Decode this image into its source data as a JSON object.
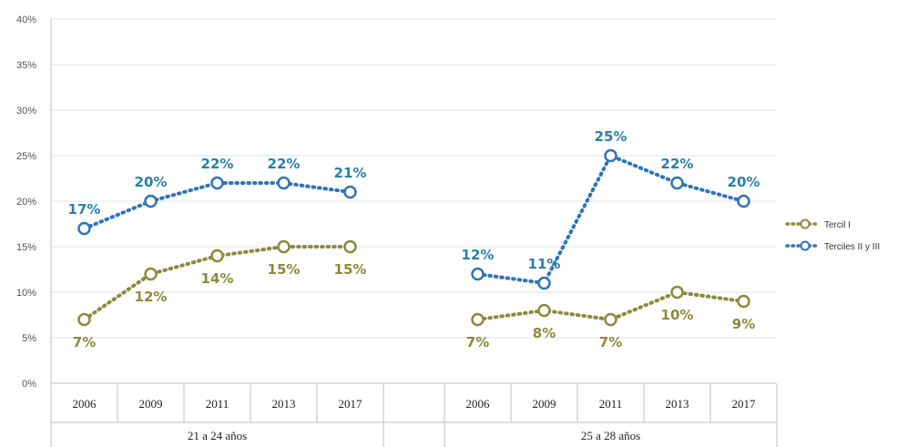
{
  "chart_data": {
    "type": "line",
    "title": "",
    "xlabel": "",
    "ylabel": "",
    "ylim": [
      0,
      40
    ],
    "yticks": [
      "0%",
      "5%",
      "10%",
      "15%",
      "20%",
      "25%",
      "30%",
      "35%",
      "40%"
    ],
    "grid": true,
    "legend_position": "right",
    "groups": [
      {
        "label": "21 a 24 años",
        "categories": [
          "2006",
          "2009",
          "2011",
          "2013",
          "2017"
        ],
        "series": [
          {
            "name": "Tercil I",
            "values": [
              7,
              12,
              14,
              15,
              15
            ],
            "labels": [
              "7%",
              "12%",
              "14%",
              "15%",
              "15%"
            ],
            "color": "#8c8a3c"
          },
          {
            "name": "Terciles II y III",
            "values": [
              17,
              20,
              22,
              22,
              21
            ],
            "labels": [
              "17%",
              "20%",
              "22%",
              "22%",
              "21%"
            ],
            "color": "#2e75b6"
          }
        ]
      },
      {
        "label": "25 a 28 años",
        "categories": [
          "2006",
          "2009",
          "2011",
          "2013",
          "2017"
        ],
        "series": [
          {
            "name": "Tercil I",
            "values": [
              7,
              8,
              7,
              10,
              9
            ],
            "labels": [
              "7%",
              "8%",
              "7%",
              "10%",
              "9%"
            ],
            "color": "#8c8a3c"
          },
          {
            "name": "Terciles II y III",
            "values": [
              12,
              11,
              25,
              22,
              20
            ],
            "labels": [
              "12%",
              "11%",
              "25%",
              "22%",
              "20%"
            ],
            "color": "#2e75b6"
          }
        ]
      }
    ],
    "legend": [
      {
        "name": "Tercil I",
        "color": "#8c8a3c"
      },
      {
        "name": "Terciles II y III",
        "color": "#2e75b6"
      }
    ]
  }
}
